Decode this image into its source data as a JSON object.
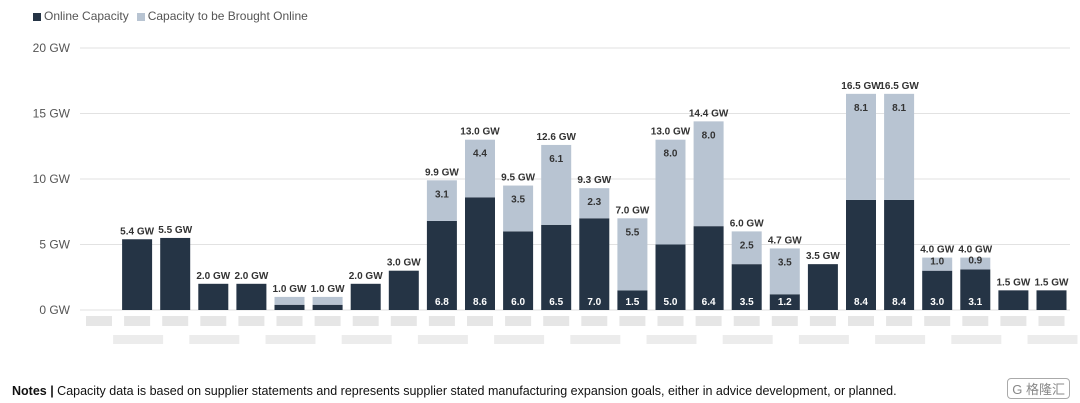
{
  "chart_data": {
    "type": "bar",
    "stacked": true,
    "title": "",
    "xlabel": "",
    "ylabel": "",
    "ylim": [
      0,
      20
    ],
    "yticks": [
      "0 GW",
      "5 GW",
      "10 GW",
      "15 GW",
      "20 GW"
    ],
    "grid": true,
    "legend_placement": "top-left",
    "categories": [
      "",
      "",
      "",
      "",
      "",
      "",
      "",
      "",
      "",
      "",
      "",
      "",
      "",
      "",
      "",
      "",
      "",
      "",
      "",
      "",
      "",
      "",
      "",
      "",
      "",
      ""
    ],
    "series": [
      {
        "name": "Online Capacity",
        "color": "#253445",
        "values": [
          null,
          5.4,
          5.5,
          2.0,
          2.0,
          0.4,
          0.4,
          2.0,
          3.0,
          6.8,
          8.6,
          6.0,
          6.5,
          7.0,
          1.5,
          5.0,
          6.4,
          3.5,
          1.2,
          3.5,
          8.4,
          8.4,
          3.0,
          3.1,
          1.5,
          1.5
        ],
        "labels": [
          "",
          "",
          "",
          "",
          "",
          "",
          "",
          "",
          "",
          "6.8",
          "8.6",
          "6.0",
          "6.5",
          "7.0",
          "1.5",
          "5.0",
          "6.4",
          "3.5",
          "1.2",
          "",
          "8.4",
          "8.4",
          "3.0",
          "3.1",
          "",
          ""
        ]
      },
      {
        "name": "Capacity to be Brought Online",
        "color": "#b8c4d2",
        "values": [
          null,
          0,
          0,
          0,
          0,
          0.6,
          0.6,
          0,
          0,
          3.1,
          4.4,
          3.5,
          6.1,
          2.3,
          5.5,
          8.0,
          8.0,
          2.5,
          3.5,
          0,
          8.1,
          8.1,
          1.0,
          0.9,
          0,
          0
        ],
        "labels": [
          "",
          "",
          "",
          "",
          "",
          "",
          "",
          "",
          "",
          "3.1",
          "4.4",
          "3.5",
          "6.1",
          "2.3",
          "5.5",
          "8.0",
          "8.0",
          "2.5",
          "3.5",
          "",
          "8.1",
          "8.1",
          "1.0",
          "0.9",
          "",
          ""
        ]
      }
    ],
    "totals": [
      "",
      "5.4 GW",
      "5.5 GW",
      "2.0 GW",
      "2.0 GW",
      "1.0 GW",
      "1.0 GW",
      "2.0 GW",
      "3.0 GW",
      "9.9 GW",
      "13.0 GW",
      "9.5 GW",
      "12.6 GW",
      "9.3 GW",
      "7.0 GW",
      "13.0 GW",
      "14.4 GW",
      "6.0 GW",
      "4.7 GW",
      "3.5 GW",
      "16.5 GW",
      "16.5 GW",
      "4.0 GW",
      "4.0 GW",
      "1.5 GW",
      "1.5 GW"
    ]
  },
  "notes": {
    "label": "Notes |",
    "text": " Capacity data is based on supplier statements and represents supplier stated manufacturing expansion goals, either in advice development, or planned."
  },
  "watermark": "格隆汇"
}
